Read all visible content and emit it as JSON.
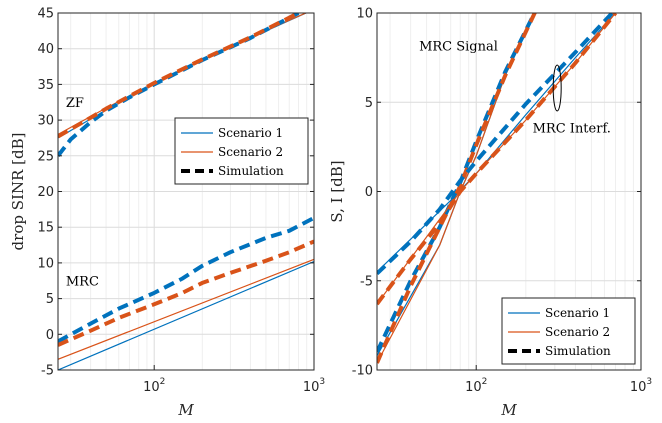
{
  "colors": {
    "scenario1": "#0072BD",
    "scenario2": "#D95319",
    "simulation": "#000000",
    "grid": "#e6e6e6",
    "axis": "#262626"
  },
  "chart_data": [
    {
      "type": "line",
      "xscale": "log",
      "xlim": [
        25,
        1000
      ],
      "ylim": [
        -5,
        45
      ],
      "xlabel": "M",
      "ylabel": "drop SINR [dB]",
      "grid": true,
      "x_ticks": [
        {
          "base": "10",
          "exp": "2",
          "value": 100
        },
        {
          "base": "10",
          "exp": "3",
          "value": 1000
        }
      ],
      "y_ticks": [
        "-5",
        "0",
        "5",
        "10",
        "15",
        "20",
        "25",
        "30",
        "35",
        "40",
        "45"
      ],
      "annotations": [
        {
          "text": "ZF",
          "x": 28,
          "y": 31.8
        },
        {
          "text": "MRC",
          "x": 28,
          "y": 6.8
        }
      ],
      "legend": {
        "position": "right-middle",
        "entries": [
          "Scenario 1",
          "Scenario 2",
          "Simulation"
        ]
      },
      "series": [
        {
          "name": "Scenario 1",
          "style": "thin",
          "color": "scenario1",
          "x": [
            25,
            50,
            100,
            200,
            400,
            1000
          ],
          "y": [
            27.5,
            31.4,
            35.0,
            38.4,
            41.5,
            45.5
          ]
        },
        {
          "name": "Scenario 2",
          "style": "thin",
          "color": "scenario2",
          "x": [
            25,
            50,
            100,
            200,
            400,
            1000
          ],
          "y": [
            28.0,
            31.7,
            35.2,
            38.5,
            41.6,
            45.5
          ]
        },
        {
          "style": "dashed",
          "color": "scenario1",
          "x": [
            25,
            30,
            40,
            50,
            70,
            100,
            200,
            400,
            800
          ],
          "y": [
            25.0,
            27.3,
            29.7,
            31.3,
            33.2,
            35.0,
            38.4,
            41.5,
            45.0
          ]
        },
        {
          "style": "dashed",
          "color": "scenario2",
          "x": [
            25,
            50,
            100,
            200,
            400,
            800
          ],
          "y": [
            27.7,
            31.6,
            35.2,
            38.5,
            41.6,
            45.0
          ]
        },
        {
          "name": "Scenario 1",
          "style": "thin",
          "color": "scenario1",
          "x": [
            25,
            1000
          ],
          "y": [
            -5.0,
            10.2
          ]
        },
        {
          "name": "Scenario 2",
          "style": "thin",
          "color": "scenario2",
          "x": [
            25,
            1000
          ],
          "y": [
            -3.5,
            10.5
          ]
        },
        {
          "style": "dashed",
          "color": "scenario1",
          "x": [
            25,
            40,
            60,
            100,
            150,
            200,
            300,
            500,
            700,
            1000
          ],
          "y": [
            -1.0,
            1.5,
            3.6,
            5.8,
            7.8,
            9.6,
            11.5,
            13.5,
            14.5,
            16.3
          ]
        },
        {
          "style": "dashed",
          "color": "scenario2",
          "x": [
            25,
            40,
            60,
            100,
            150,
            200,
            300,
            500,
            700,
            1000
          ],
          "y": [
            -1.5,
            0.5,
            2.3,
            4.2,
            5.8,
            7.2,
            8.6,
            10.3,
            11.5,
            13.0
          ]
        }
      ]
    },
    {
      "type": "line",
      "xscale": "log",
      "xlim": [
        25,
        1000
      ],
      "ylim": [
        -10,
        10
      ],
      "xlabel": "M",
      "ylabel": "S, I [dB]",
      "grid": true,
      "x_ticks": [
        {
          "base": "10",
          "exp": "2",
          "value": 100
        },
        {
          "base": "10",
          "exp": "3",
          "value": 1000
        }
      ],
      "y_ticks": [
        "-10",
        "-5",
        "0",
        "5",
        "10"
      ],
      "annotations": [
        {
          "text": "MRC Signal",
          "x": 45,
          "y": 7.9
        },
        {
          "text": "MRC Interf.",
          "x": 220,
          "y": 3.3
        }
      ],
      "legend": {
        "position": "bottom-right",
        "entries": [
          "Scenario 1",
          "Scenario 2",
          "Simulation"
        ]
      },
      "series": [
        {
          "name": "Scenario 1",
          "style": "thin",
          "color": "scenario1",
          "x": [
            25,
            60,
            80,
            100,
            150,
            250
          ],
          "y": [
            -9.2,
            -3.0,
            0.0,
            2.0,
            6.5,
            10.8
          ]
        },
        {
          "name": "Scenario 2",
          "style": "thin",
          "color": "scenario2",
          "x": [
            25,
            60,
            80,
            100,
            150,
            250
          ],
          "y": [
            -9.6,
            -3.0,
            0.0,
            2.0,
            6.5,
            10.8
          ]
        },
        {
          "style": "dashed",
          "color": "scenario1",
          "x": [
            25,
            40,
            60,
            80,
            100,
            150,
            240
          ],
          "y": [
            -9.0,
            -5.0,
            -2.0,
            0.5,
            2.8,
            6.7,
            10.5
          ]
        },
        {
          "style": "dashed",
          "color": "scenario2",
          "x": [
            25,
            40,
            60,
            80,
            100,
            150,
            240
          ],
          "y": [
            -9.6,
            -5.3,
            -2.0,
            0.3,
            2.6,
            6.5,
            10.5
          ]
        },
        {
          "name": "Scenario 1",
          "style": "thin",
          "color": "scenario1",
          "x": [
            25,
            70,
            100,
            200,
            400,
            700
          ],
          "y": [
            -4.5,
            -0.5,
            1.0,
            4.3,
            7.5,
            10.0
          ]
        },
        {
          "name": "Scenario 2",
          "style": "thin",
          "color": "scenario2",
          "x": [
            25,
            80,
            100,
            200,
            400,
            700
          ],
          "y": [
            -6.3,
            0.0,
            1.0,
            4.0,
            7.2,
            10.0
          ]
        },
        {
          "style": "dashed",
          "color": "scenario1",
          "x": [
            25,
            40,
            60,
            80,
            100,
            200,
            400,
            700
          ],
          "y": [
            -4.6,
            -2.8,
            -1.0,
            0.6,
            1.7,
            4.9,
            7.8,
            10.2
          ]
        },
        {
          "style": "dashed",
          "color": "scenario2",
          "x": [
            25,
            40,
            60,
            80,
            100,
            200,
            400,
            700
          ],
          "y": [
            -6.3,
            -3.8,
            -1.8,
            0.0,
            1.0,
            4.0,
            7.2,
            10.0
          ]
        }
      ]
    }
  ]
}
